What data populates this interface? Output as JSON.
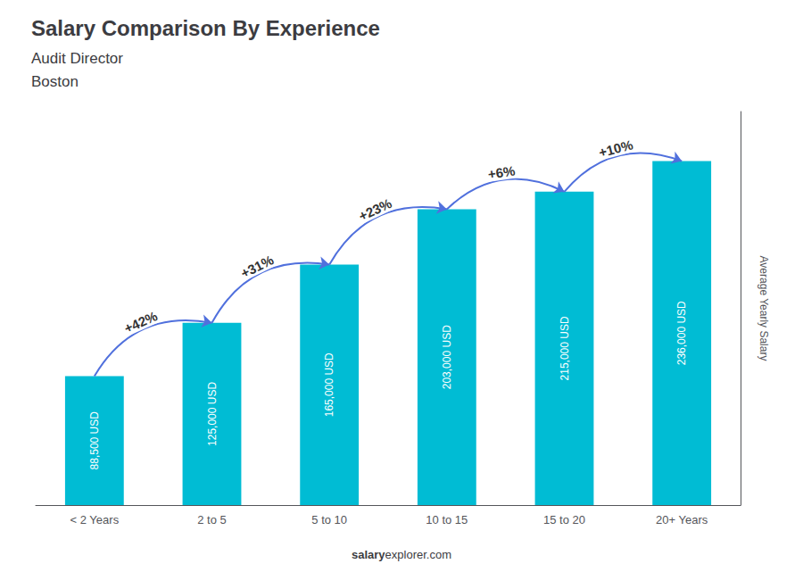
{
  "chart_data": {
    "type": "bar",
    "title": "Salary Comparison By Experience",
    "subtitle": "Audit Director",
    "subtitle2": "Boston",
    "ylabel": "Average Yearly Salary",
    "categories": [
      "< 2 Years",
      "2 to 5",
      "5 to 10",
      "10 to 15",
      "15 to 20",
      "20+ Years"
    ],
    "values": [
      88500,
      125000,
      165000,
      203000,
      215000,
      236000
    ],
    "value_labels": [
      "88,500 USD",
      "125,000 USD",
      "165,000 USD",
      "203,000 USD",
      "215,000 USD",
      "236,000 USD"
    ],
    "data_labels": true,
    "color": "#00bcd4",
    "ylim": [
      0,
      270000
    ],
    "tick_labels": "x",
    "grid": false,
    "annotations": [
      "+42%",
      "+31%",
      "+23%",
      "+6%",
      "+10%"
    ],
    "footer": [
      "salary",
      "explorer.com"
    ]
  }
}
